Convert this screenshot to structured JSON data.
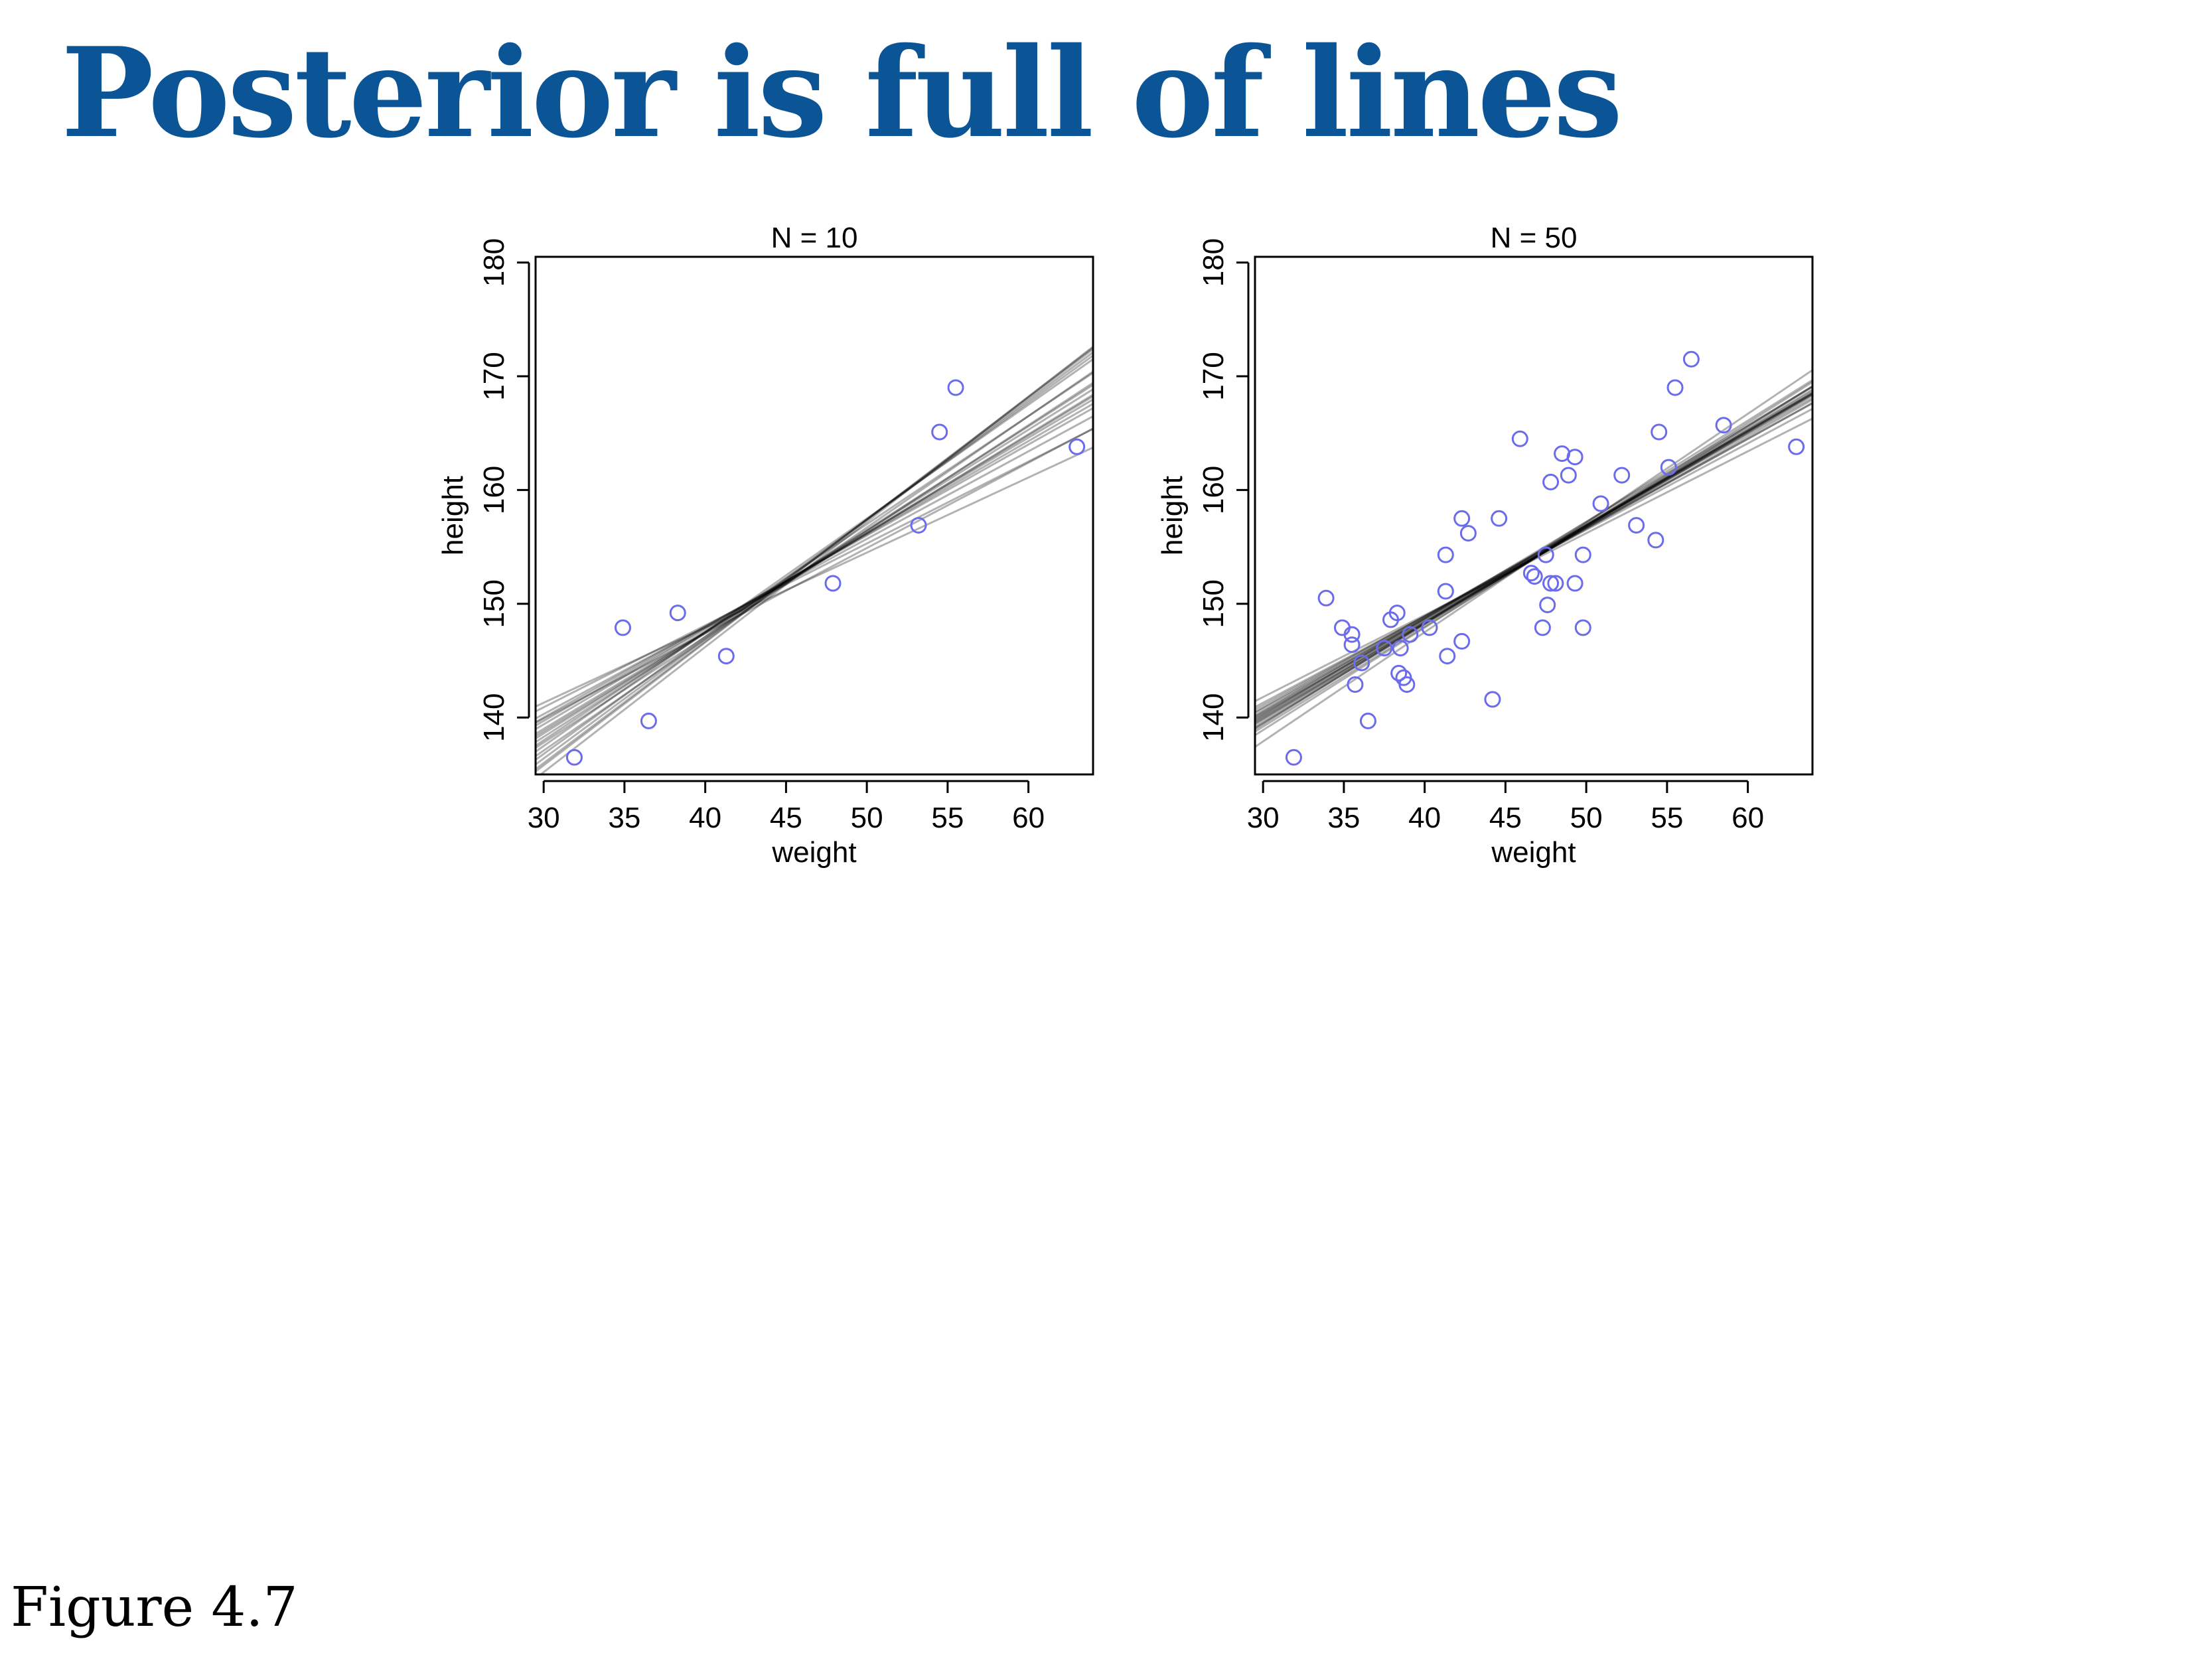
{
  "slide": {
    "title": "Posterior is full of lines",
    "caption": "Figure 4.7"
  },
  "colors": {
    "title": "#0b5596",
    "points": "#6b6bee",
    "lines": "#000000"
  },
  "chart_data": [
    {
      "type": "scatter",
      "title": "N = 10",
      "xlabel": "weight",
      "ylabel": "height",
      "xlim": [
        29.5,
        64
      ],
      "ylim": [
        135,
        180.5
      ],
      "xticks": [
        30,
        35,
        40,
        45,
        50,
        55,
        60
      ],
      "yticks": [
        140,
        150,
        160,
        170,
        180
      ],
      "points": {
        "x": [
          31.9,
          34.9,
          36.5,
          38.3,
          41.3,
          47.9,
          53.2,
          54.5,
          55.5,
          63.0
        ],
        "y": [
          136.5,
          147.9,
          139.7,
          149.2,
          145.4,
          151.8,
          156.9,
          165.1,
          169.0,
          163.8
        ]
      },
      "lines": [
        {
          "intercept": 139.0,
          "slope": 0.86
        },
        {
          "intercept": 140.9,
          "slope": 0.72
        },
        {
          "intercept": 137.8,
          "slope": 0.93
        },
        {
          "intercept": 136.4,
          "slope": 1.05
        },
        {
          "intercept": 135.2,
          "slope": 1.1
        },
        {
          "intercept": 140.3,
          "slope": 0.77
        },
        {
          "intercept": 138.6,
          "slope": 0.89
        },
        {
          "intercept": 137.1,
          "slope": 0.98
        },
        {
          "intercept": 139.7,
          "slope": 0.82
        },
        {
          "intercept": 136.0,
          "slope": 1.07
        },
        {
          "intercept": 141.3,
          "slope": 0.66
        },
        {
          "intercept": 138.0,
          "slope": 0.95
        },
        {
          "intercept": 139.4,
          "slope": 0.84
        },
        {
          "intercept": 137.5,
          "slope": 1.0
        },
        {
          "intercept": 140.0,
          "slope": 0.8
        },
        {
          "intercept": 136.8,
          "slope": 1.03
        },
        {
          "intercept": 138.3,
          "slope": 0.91
        },
        {
          "intercept": 139.9,
          "slope": 0.75
        },
        {
          "intercept": 135.8,
          "slope": 1.08
        },
        {
          "intercept": 138.8,
          "slope": 0.87
        }
      ]
    },
    {
      "type": "scatter",
      "title": "N = 50",
      "xlabel": "weight",
      "ylabel": "height",
      "xlim": [
        29.5,
        64
      ],
      "ylim": [
        135,
        180.5
      ],
      "xticks": [
        30,
        35,
        40,
        45,
        50,
        55,
        60
      ],
      "yticks": [
        140,
        150,
        160,
        170,
        180
      ],
      "points": {
        "x": [
          31.9,
          33.9,
          34.9,
          35.5,
          35.5,
          35.7,
          36.1,
          36.5,
          37.5,
          37.9,
          38.3,
          38.4,
          38.5,
          38.7,
          38.9,
          39.1,
          40.3,
          41.3,
          41.3,
          41.4,
          42.3,
          42.3,
          42.7,
          44.2,
          44.6,
          45.9,
          46.6,
          46.8,
          47.3,
          47.5,
          47.6,
          47.8,
          47.8,
          48.1,
          48.5,
          48.9,
          49.3,
          49.3,
          49.8,
          49.8,
          50.9,
          52.2,
          53.1,
          54.3,
          54.5,
          55.1,
          55.5,
          56.5,
          58.5,
          63.0
        ],
        "y": [
          136.5,
          150.5,
          147.9,
          147.3,
          146.4,
          142.9,
          144.8,
          139.7,
          146.1,
          148.6,
          149.2,
          143.9,
          146.1,
          143.5,
          142.9,
          147.3,
          147.9,
          151.1,
          154.3,
          145.4,
          157.5,
          146.7,
          156.2,
          141.6,
          157.5,
          164.5,
          152.7,
          152.4,
          147.9,
          154.3,
          149.9,
          151.8,
          160.7,
          151.8,
          163.2,
          161.3,
          162.9,
          151.8,
          147.9,
          154.3,
          158.8,
          161.3,
          156.9,
          155.6,
          165.1,
          162.0,
          169.0,
          171.5,
          165.7,
          163.8
        ]
      },
      "lines": [
        {
          "intercept": 140.1,
          "slope": 0.83
        },
        {
          "intercept": 139.5,
          "slope": 0.87
        },
        {
          "intercept": 140.8,
          "slope": 0.79
        },
        {
          "intercept": 139.8,
          "slope": 0.85
        },
        {
          "intercept": 140.4,
          "slope": 0.81
        },
        {
          "intercept": 138.9,
          "slope": 0.9
        },
        {
          "intercept": 141.3,
          "slope": 0.76
        },
        {
          "intercept": 140.6,
          "slope": 0.82
        },
        {
          "intercept": 139.2,
          "slope": 0.88
        },
        {
          "intercept": 140.0,
          "slope": 0.84
        },
        {
          "intercept": 141.8,
          "slope": 0.72
        },
        {
          "intercept": 137.9,
          "slope": 0.96
        },
        {
          "intercept": 140.3,
          "slope": 0.83
        },
        {
          "intercept": 139.6,
          "slope": 0.86
        },
        {
          "intercept": 140.9,
          "slope": 0.8
        },
        {
          "intercept": 139.9,
          "slope": 0.84
        },
        {
          "intercept": 141.1,
          "slope": 0.78
        },
        {
          "intercept": 139.4,
          "slope": 0.89
        },
        {
          "intercept": 140.5,
          "slope": 0.82
        },
        {
          "intercept": 140.2,
          "slope": 0.85
        }
      ]
    }
  ]
}
